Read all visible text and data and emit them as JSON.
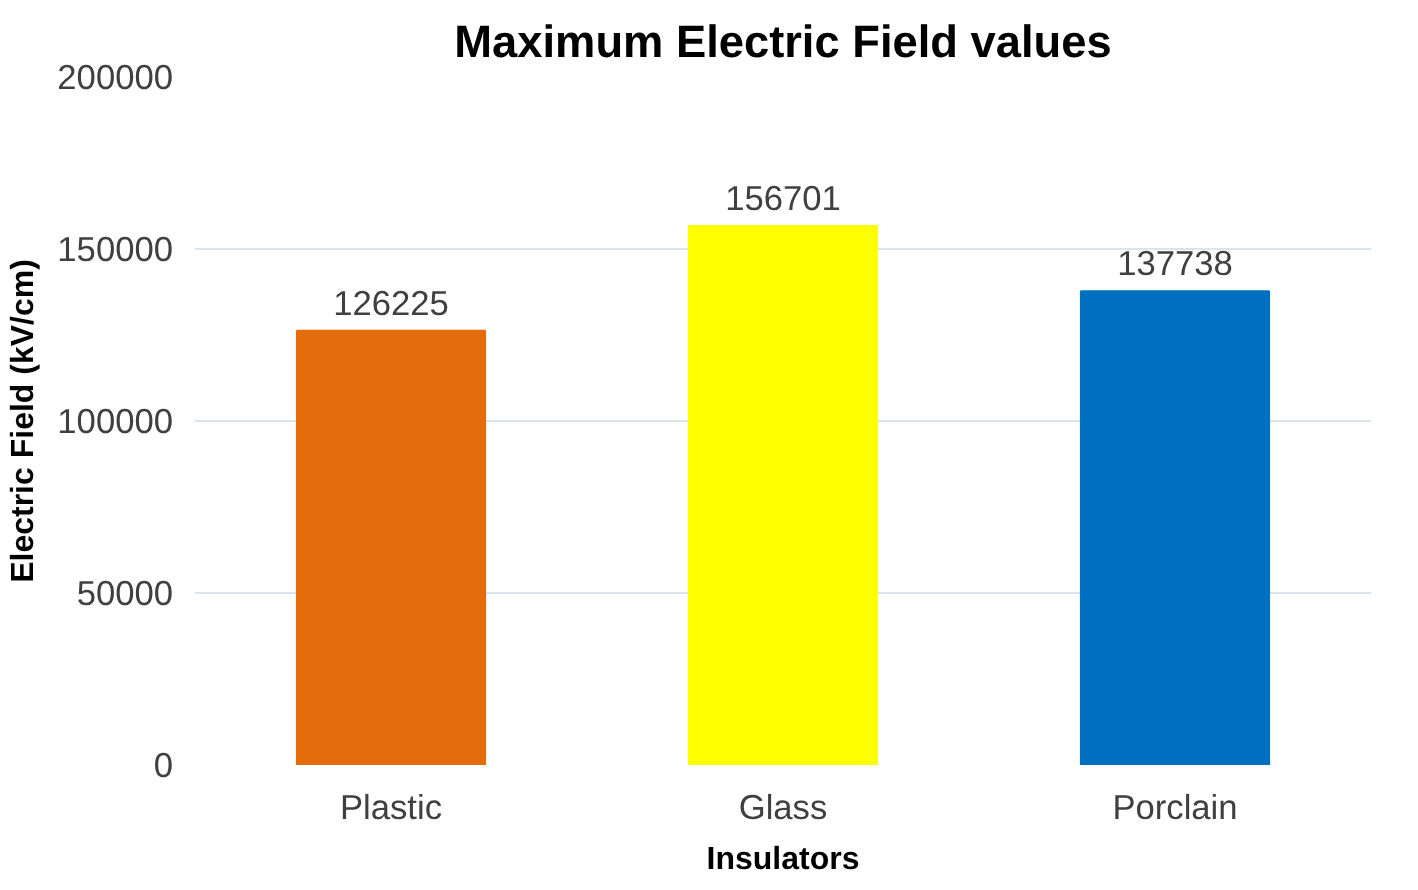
{
  "chart_data": {
    "type": "bar",
    "title": "Maximum Electric Field values",
    "xlabel": "Insulators",
    "ylabel": "Electric Field (kV/cm)",
    "categories": [
      "Plastic",
      "Glass",
      "Porclain"
    ],
    "values": [
      126225,
      156701,
      137738
    ],
    "colors": [
      "#e46c0a",
      "#ffff00",
      "#0070c0"
    ],
    "ylim": [
      0,
      200000
    ],
    "yticks": [
      0,
      50000,
      100000,
      150000,
      200000
    ],
    "grid": "y",
    "data_labels": true
  }
}
